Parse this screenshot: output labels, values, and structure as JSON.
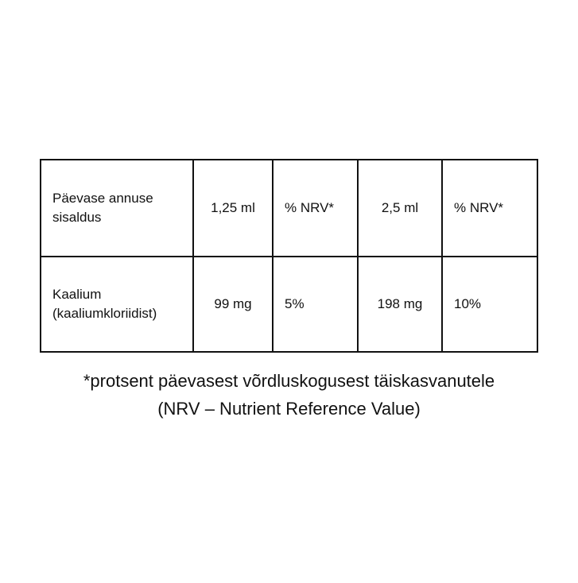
{
  "table": {
    "header": [
      "Päevase annuse sisaldus",
      "1,25 ml",
      "% NRV*",
      "2,5 ml",
      "% NRV*"
    ],
    "row": [
      "Kaalium (kaaliumkloriidist)",
      "99 mg",
      "5%",
      "198 mg",
      "10%"
    ]
  },
  "footnote": {
    "line1": "*protsent päevasest võrdluskogusest täiskasvanutele",
    "line2": "(NRV – Nutrient Reference Value)"
  }
}
